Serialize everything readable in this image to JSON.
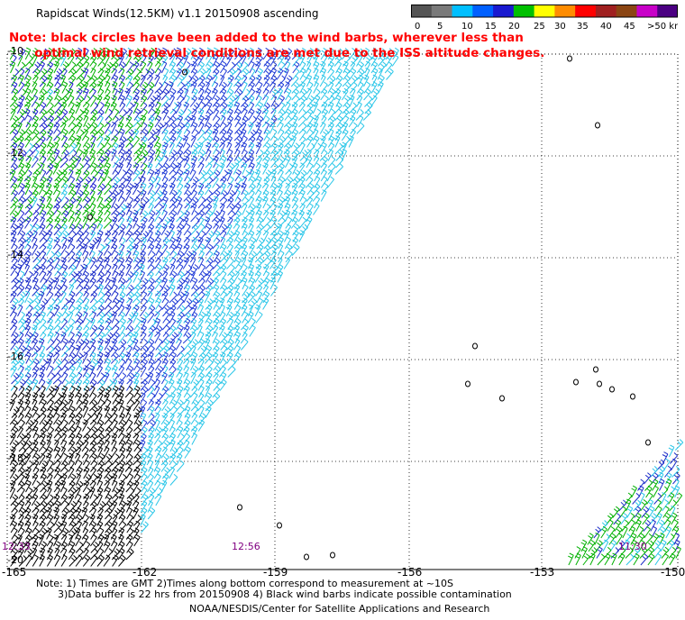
{
  "title": "Rapidscat Winds(12.5KM) v1.1 20150908 ascending",
  "note": "Note: black circles have been added to the wind barbs, wherever less than\n      optimal wind retrieval conditions are met due to the ISS altitude changes.",
  "legend": {
    "labels": [
      "0",
      "5",
      "10",
      "15",
      "20",
      "25",
      "30",
      "35",
      "40",
      "45",
      ">50 knots"
    ],
    "colors": [
      "#555555",
      "#7a7a7a",
      "#00bfff",
      "#0060ff",
      "#1a1ad0",
      "#00c000",
      "#ffff00",
      "#ff8c00",
      "#ff0000",
      "#a02020",
      "#8b4513",
      "#c800c8",
      "#4b0082"
    ]
  },
  "map": {
    "lon_labels": [
      "-165",
      "-162",
      "-159",
      "-156",
      "-153",
      "-150"
    ],
    "lat_labels": [
      "-10",
      "-12",
      "-14",
      "-16",
      "-18",
      "-20"
    ],
    "time_labels": [
      "12:33",
      "12:56",
      "11:30"
    ]
  },
  "footer": {
    "line1": "Note: 1) Times are GMT 2)Times along bottom correspond to measurement at ~10S",
    "line2": "3)Data buffer is 22 hrs from 20150908 4) Black wind barbs indicate possible contamination",
    "line3": "NOAA/NESDIS/Center for Satellite Applications and Research"
  }
}
